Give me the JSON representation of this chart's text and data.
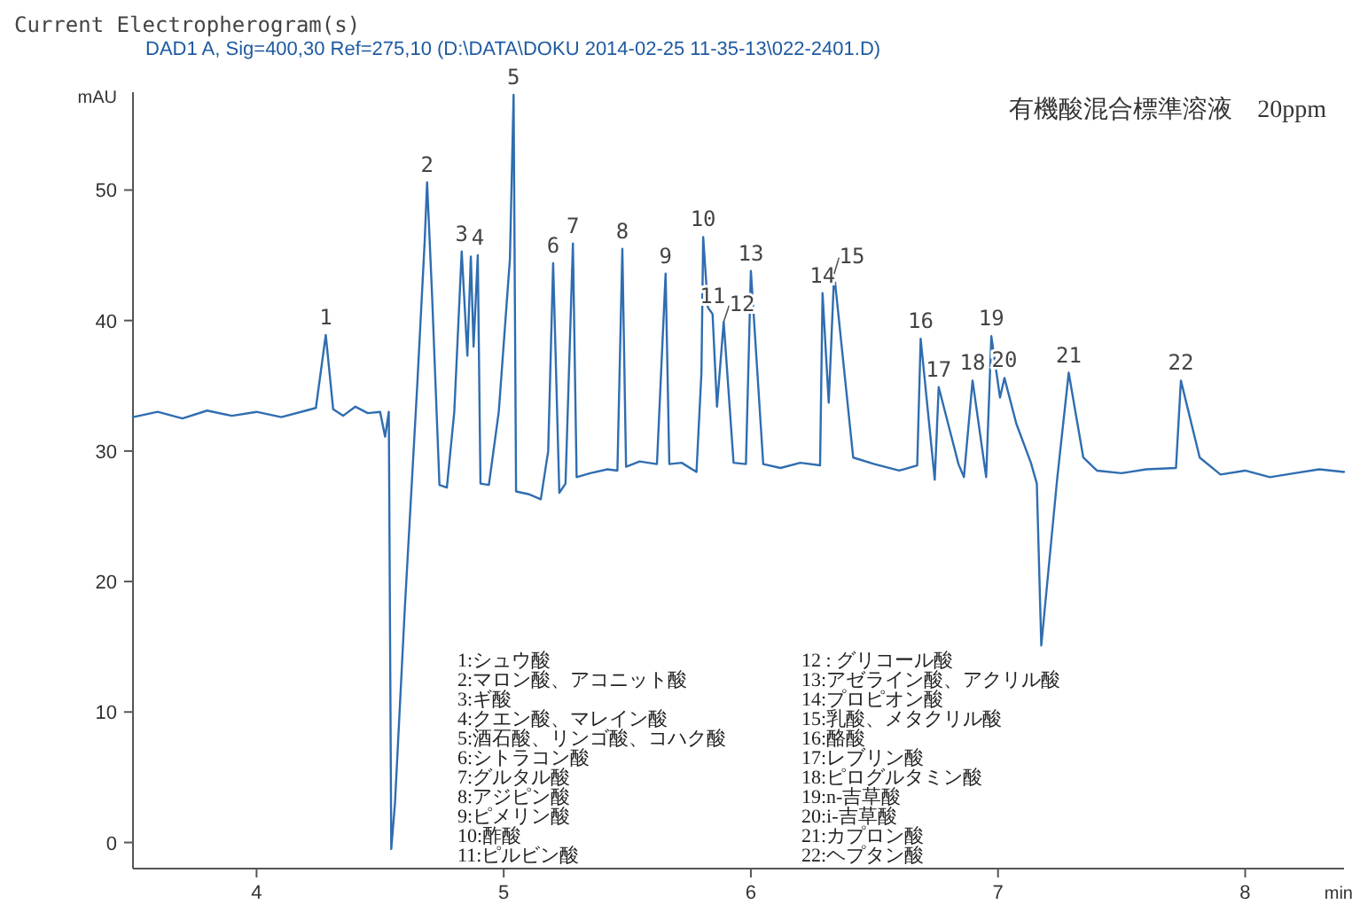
{
  "chart_data": {
    "type": "line",
    "title": "Current Electropherogram(s)",
    "subtitle": "DAD1 A, Sig=400,30 Ref=275,10 (D:\\DATA\\DOKU 2014-02-25 11-35-13\\022-2401.D)",
    "xlabel": "min",
    "ylabel": "mAU",
    "xlim": [
      3.5,
      8.4
    ],
    "ylim": [
      -2,
      57.5
    ],
    "xticks": [
      4,
      5,
      6,
      7,
      8
    ],
    "yticks": [
      0,
      10,
      20,
      30,
      40,
      50
    ],
    "grid": false,
    "series": [
      {
        "color": "#2f6db0",
        "x": [
          3.5,
          3.6,
          3.7,
          3.8,
          3.9,
          4.0,
          4.1,
          4.2,
          4.24,
          4.28,
          4.31,
          4.35,
          4.4,
          4.45,
          4.5,
          4.52,
          4.535,
          4.545,
          4.56,
          4.6,
          4.65,
          4.68,
          4.69,
          4.71,
          4.74,
          4.77,
          4.8,
          4.83,
          4.853,
          4.867,
          4.878,
          4.895,
          4.906,
          4.94,
          4.98,
          5.025,
          5.04,
          5.05,
          5.1,
          5.15,
          5.18,
          5.2,
          5.225,
          5.25,
          5.28,
          5.295,
          5.35,
          5.42,
          5.46,
          5.48,
          5.495,
          5.55,
          5.62,
          5.655,
          5.67,
          5.72,
          5.78,
          5.8,
          5.807,
          5.826,
          5.845,
          5.863,
          5.89,
          5.93,
          5.98,
          6.0,
          6.05,
          6.12,
          6.2,
          6.28,
          6.29,
          6.315,
          6.337,
          6.414,
          6.5,
          6.6,
          6.673,
          6.687,
          6.744,
          6.76,
          6.84,
          6.862,
          6.897,
          6.952,
          6.973,
          7.008,
          7.026,
          7.074,
          7.133,
          7.157,
          7.175,
          7.239,
          7.286,
          7.345,
          7.4,
          7.5,
          7.6,
          7.72,
          7.74,
          7.816,
          7.9,
          8.0,
          8.1,
          8.2,
          8.3,
          8.4
        ],
        "values": [
          32.6,
          33.0,
          32.5,
          33.1,
          32.7,
          33.0,
          32.6,
          33.1,
          33.3,
          38.9,
          33.2,
          32.7,
          33.4,
          32.9,
          33.0,
          31.1,
          33.0,
          -0.5,
          3,
          18,
          35,
          46,
          50.6,
          42,
          27.4,
          27.2,
          33,
          45.3,
          37.3,
          44.9,
          38,
          45,
          27.5,
          27.4,
          33,
          44.7,
          57.3,
          26.9,
          26.7,
          26.3,
          30,
          44.4,
          26.8,
          27.5,
          45.9,
          28,
          28.3,
          28.6,
          28.5,
          45.5,
          28.8,
          29.2,
          29.0,
          43.6,
          29.0,
          29.1,
          28.4,
          36,
          46.4,
          41.0,
          40.5,
          33.4,
          39.9,
          29.1,
          29.0,
          43.8,
          29.0,
          28.7,
          29.1,
          28.9,
          42.1,
          33.7,
          43.6,
          29.5,
          29.0,
          28.5,
          28.9,
          38.6,
          27.8,
          34.9,
          29,
          28,
          35.4,
          28,
          38.8,
          34.1,
          35.6,
          32.1,
          29.1,
          27.5,
          15.1,
          27.8,
          36.0,
          29.5,
          28.5,
          28.3,
          28.6,
          28.7,
          35.4,
          29.5,
          28.2,
          28.5,
          28.0,
          28.3,
          28.6,
          28.4
        ]
      }
    ],
    "annotations": [
      "有機酸混合標準溶液　20ppm",
      {
        "text": "1",
        "x": 4.28,
        "y": 38.9
      },
      {
        "text": "2",
        "x": 4.69,
        "y": 50.6
      },
      {
        "text": "3",
        "x": 4.83,
        "y": 45.3
      },
      {
        "text": "4",
        "x": 4.895,
        "y": 45
      },
      {
        "text": "5",
        "x": 5.04,
        "y": 57.3
      },
      {
        "text": "6",
        "x": 5.2,
        "y": 44.4
      },
      {
        "text": "7",
        "x": 5.28,
        "y": 45.9
      },
      {
        "text": "8",
        "x": 5.48,
        "y": 45.5
      },
      {
        "text": "9",
        "x": 5.655,
        "y": 43.6
      },
      {
        "text": "10",
        "x": 5.807,
        "y": 46.4
      },
      {
        "text": "11",
        "x": 5.845,
        "y": 40.5
      },
      {
        "text": "12",
        "x": 5.89,
        "y": 39.9
      },
      {
        "text": "13",
        "x": 6.0,
        "y": 43.8
      },
      {
        "text": "14",
        "x": 6.29,
        "y": 42.1
      },
      {
        "text": "15",
        "x": 6.337,
        "y": 43.6
      },
      {
        "text": "16",
        "x": 6.687,
        "y": 38.6
      },
      {
        "text": "17",
        "x": 6.76,
        "y": 34.9
      },
      {
        "text": "18",
        "x": 6.897,
        "y": 35.4
      },
      {
        "text": "19",
        "x": 6.973,
        "y": 38.8
      },
      {
        "text": "20",
        "x": 7.026,
        "y": 35.6
      },
      {
        "text": "21",
        "x": 7.286,
        "y": 36.0
      },
      {
        "text": "22",
        "x": 7.74,
        "y": 35.4
      },
      "1:シュウ酸",
      "2:マロン酸、アコニット酸",
      "3:ギ酸",
      "4:クエン酸、マレイン酸",
      "5:酒石酸、リンゴ酸、コハク酸",
      "6:シトラコン酸",
      "7:グルタル酸",
      "8:アジピン酸",
      "9:ピメリン酸",
      "10:酢酸",
      "11:ピルビン酸",
      "12 : グリコール酸",
      "13:アゼライン酸、アクリル酸",
      "14:プロピオン酸",
      "15:乳酸、メタクリル酸",
      "16:酪酸",
      "17:レブリン酸",
      "18:ピログルタミン酸",
      "19:n-吉草酸",
      "20:i-吉草酸",
      "21:カプロン酸",
      "22:ヘプタン酸"
    ]
  }
}
